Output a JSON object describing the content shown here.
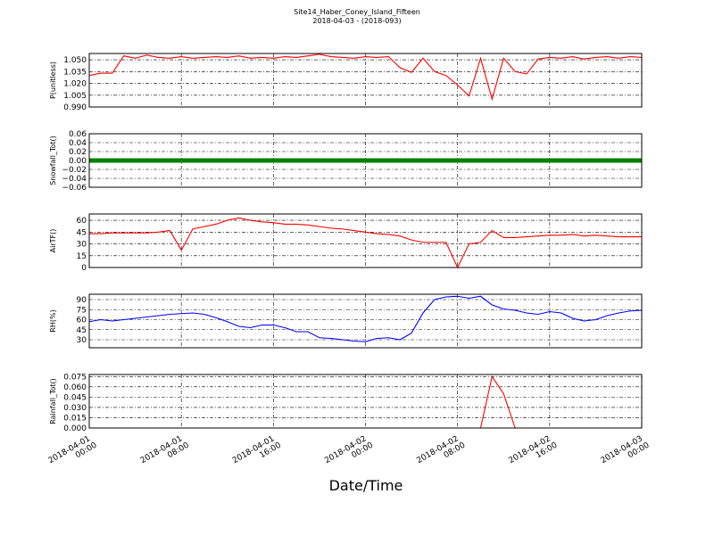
{
  "title": "Site14_Haber_Coney_Island_Fifteen",
  "subtitle": "2018-04-03 - (2018-093)",
  "xlabel": "Date/Time",
  "chart_data": [
    {
      "type": "line",
      "ylabel": "P(unitless)",
      "color": "#ff0000",
      "grid": true,
      "x": [
        "2018-04-01 00:00",
        "2018-04-01 01:00",
        "2018-04-01 02:00",
        "2018-04-01 03:00",
        "2018-04-01 04:00",
        "2018-04-01 05:00",
        "2018-04-01 06:00",
        "2018-04-01 07:00",
        "2018-04-01 08:00",
        "2018-04-01 09:00",
        "2018-04-01 10:00",
        "2018-04-01 11:00",
        "2018-04-01 12:00",
        "2018-04-01 13:00",
        "2018-04-01 14:00",
        "2018-04-01 15:00",
        "2018-04-01 16:00",
        "2018-04-01 17:00",
        "2018-04-01 18:00",
        "2018-04-01 19:00",
        "2018-04-01 20:00",
        "2018-04-01 21:00",
        "2018-04-01 22:00",
        "2018-04-01 23:00",
        "2018-04-02 00:00",
        "2018-04-02 01:00",
        "2018-04-02 02:00",
        "2018-04-02 03:00",
        "2018-04-02 04:00",
        "2018-04-02 05:00",
        "2018-04-02 06:00",
        "2018-04-02 07:00",
        "2018-04-02 08:00",
        "2018-04-02 09:00",
        "2018-04-02 10:00",
        "2018-04-02 11:00",
        "2018-04-02 12:00",
        "2018-04-02 13:00",
        "2018-04-02 14:00",
        "2018-04-02 15:00",
        "2018-04-02 16:00",
        "2018-04-02 17:00",
        "2018-04-02 18:00",
        "2018-04-02 19:00",
        "2018-04-02 20:00",
        "2018-04-02 21:00",
        "2018-04-02 22:00",
        "2018-04-02 23:00",
        "2018-04-03 00:00"
      ],
      "values": [
        1.03,
        1.033,
        1.033,
        1.055,
        1.052,
        1.056,
        1.053,
        1.052,
        1.054,
        1.052,
        1.053,
        1.054,
        1.053,
        1.055,
        1.052,
        1.053,
        1.052,
        1.054,
        1.053,
        1.055,
        1.057,
        1.054,
        1.053,
        1.052,
        1.054,
        1.053,
        1.054,
        1.04,
        1.034,
        1.052,
        1.035,
        1.03,
        1.018,
        1.004,
        1.052,
        1.0,
        1.052,
        1.035,
        1.032,
        1.051,
        1.053,
        1.052,
        1.054,
        1.051,
        1.053,
        1.054,
        1.052,
        1.054,
        1.053
      ],
      "xlim": [
        "2018-04-01 00:00",
        "2018-04-03 00:00"
      ],
      "xticks": [
        "2018-04-01 00:00",
        "2018-04-01 08:00",
        "2018-04-01 16:00",
        "2018-04-02 00:00",
        "2018-04-02 08:00",
        "2018-04-02 16:00",
        "2018-04-03 00:00"
      ],
      "ylim": [
        0.99,
        1.058
      ],
      "yticks": [
        {
          "value": 0.99,
          "label": "0.990"
        },
        {
          "value": 1.005,
          "label": "1.005"
        },
        {
          "value": 1.02,
          "label": "1.020"
        },
        {
          "value": 1.035,
          "label": "1.035"
        },
        {
          "value": 1.05,
          "label": "1.050"
        }
      ]
    },
    {
      "type": "line",
      "ylabel": "Snowfall_Tot()",
      "color": "#008000",
      "grid": true,
      "x": [
        "2018-04-01 00:00",
        "2018-04-01 01:00",
        "2018-04-01 02:00",
        "2018-04-01 03:00",
        "2018-04-01 04:00",
        "2018-04-01 05:00",
        "2018-04-01 06:00",
        "2018-04-01 07:00",
        "2018-04-01 08:00",
        "2018-04-01 09:00",
        "2018-04-01 10:00",
        "2018-04-01 11:00",
        "2018-04-01 12:00",
        "2018-04-01 13:00",
        "2018-04-01 14:00",
        "2018-04-01 15:00",
        "2018-04-01 16:00",
        "2018-04-01 17:00",
        "2018-04-01 18:00",
        "2018-04-01 19:00",
        "2018-04-01 20:00",
        "2018-04-01 21:00",
        "2018-04-01 22:00",
        "2018-04-01 23:00",
        "2018-04-02 00:00",
        "2018-04-02 01:00",
        "2018-04-02 02:00",
        "2018-04-02 03:00",
        "2018-04-02 04:00",
        "2018-04-02 05:00",
        "2018-04-02 06:00",
        "2018-04-02 07:00",
        "2018-04-02 08:00",
        "2018-04-02 09:00",
        "2018-04-02 10:00",
        "2018-04-02 11:00",
        "2018-04-02 12:00",
        "2018-04-02 13:00",
        "2018-04-02 14:00",
        "2018-04-02 15:00",
        "2018-04-02 16:00",
        "2018-04-02 17:00",
        "2018-04-02 18:00",
        "2018-04-02 19:00",
        "2018-04-02 20:00",
        "2018-04-02 21:00",
        "2018-04-02 22:00",
        "2018-04-02 23:00",
        "2018-04-03 00:00"
      ],
      "values": [
        0,
        0,
        0,
        0,
        0,
        0,
        0,
        0,
        0,
        0,
        0,
        0,
        0,
        0,
        0,
        0,
        0,
        0,
        0,
        0,
        0,
        0,
        0,
        0,
        0,
        0,
        0,
        0,
        0,
        0,
        0,
        0,
        0,
        0,
        0,
        0,
        0,
        0,
        0,
        0,
        0,
        0,
        0,
        0,
        0,
        0,
        0,
        0,
        0
      ],
      "xlim": [
        "2018-04-01 00:00",
        "2018-04-03 00:00"
      ],
      "xticks": [
        "2018-04-01 00:00",
        "2018-04-01 08:00",
        "2018-04-01 16:00",
        "2018-04-02 00:00",
        "2018-04-02 08:00",
        "2018-04-02 16:00",
        "2018-04-03 00:00"
      ],
      "ylim": [
        -0.06,
        0.06
      ],
      "yticks": [
        {
          "value": -0.06,
          "label": "−0.06"
        },
        {
          "value": -0.04,
          "label": "−0.04"
        },
        {
          "value": -0.02,
          "label": "−0.02"
        },
        {
          "value": 0,
          "label": "0.00"
        },
        {
          "value": 0.02,
          "label": "0.02"
        },
        {
          "value": 0.04,
          "label": "0.04"
        },
        {
          "value": 0.06,
          "label": "0.06"
        }
      ]
    },
    {
      "type": "line",
      "ylabel": "AirTF()",
      "color": "#ff0000",
      "grid": true,
      "x": [
        "2018-04-01 00:00",
        "2018-04-01 01:00",
        "2018-04-01 02:00",
        "2018-04-01 03:00",
        "2018-04-01 04:00",
        "2018-04-01 05:00",
        "2018-04-01 06:00",
        "2018-04-01 07:00",
        "2018-04-01 08:00",
        "2018-04-01 09:00",
        "2018-04-01 10:00",
        "2018-04-01 11:00",
        "2018-04-01 12:00",
        "2018-04-01 13:00",
        "2018-04-01 14:00",
        "2018-04-01 15:00",
        "2018-04-01 16:00",
        "2018-04-01 17:00",
        "2018-04-01 18:00",
        "2018-04-01 19:00",
        "2018-04-01 20:00",
        "2018-04-01 21:00",
        "2018-04-01 22:00",
        "2018-04-01 23:00",
        "2018-04-02 00:00",
        "2018-04-02 01:00",
        "2018-04-02 02:00",
        "2018-04-02 03:00",
        "2018-04-02 04:00",
        "2018-04-02 05:00",
        "2018-04-02 06:00",
        "2018-04-02 07:00",
        "2018-04-02 08:00",
        "2018-04-02 09:00",
        "2018-04-02 10:00",
        "2018-04-02 11:00",
        "2018-04-02 12:00",
        "2018-04-02 13:00",
        "2018-04-02 14:00",
        "2018-04-02 15:00",
        "2018-04-02 16:00",
        "2018-04-02 17:00",
        "2018-04-02 18:00",
        "2018-04-02 19:00",
        "2018-04-02 20:00",
        "2018-04-02 21:00",
        "2018-04-02 22:00",
        "2018-04-02 23:00",
        "2018-04-03 00:00"
      ],
      "values": [
        43,
        43,
        44,
        44,
        44,
        44,
        45,
        47,
        22,
        49,
        52,
        55,
        60,
        63,
        60,
        58,
        57,
        55,
        55,
        54,
        52,
        50,
        49,
        47,
        45,
        43,
        42,
        40,
        35,
        32,
        32,
        32,
        0,
        30,
        32,
        47,
        38,
        38,
        39,
        40,
        41,
        41,
        42,
        40,
        41,
        40,
        39,
        39,
        39
      ],
      "xlim": [
        "2018-04-01 00:00",
        "2018-04-03 00:00"
      ],
      "xticks": [
        "2018-04-01 00:00",
        "2018-04-01 08:00",
        "2018-04-01 16:00",
        "2018-04-02 00:00",
        "2018-04-02 08:00",
        "2018-04-02 16:00",
        "2018-04-03 00:00"
      ],
      "ylim": [
        0,
        68
      ],
      "yticks": [
        0,
        15,
        30,
        45,
        60
      ]
    },
    {
      "type": "line",
      "ylabel": "RH(%)",
      "color": "#0000ff",
      "grid": true,
      "x": [
        "2018-04-01 00:00",
        "2018-04-01 01:00",
        "2018-04-01 02:00",
        "2018-04-01 03:00",
        "2018-04-01 04:00",
        "2018-04-01 05:00",
        "2018-04-01 06:00",
        "2018-04-01 07:00",
        "2018-04-01 08:00",
        "2018-04-01 09:00",
        "2018-04-01 10:00",
        "2018-04-01 11:00",
        "2018-04-01 12:00",
        "2018-04-01 13:00",
        "2018-04-01 14:00",
        "2018-04-01 15:00",
        "2018-04-01 16:00",
        "2018-04-01 17:00",
        "2018-04-01 18:00",
        "2018-04-01 19:00",
        "2018-04-01 20:00",
        "2018-04-01 21:00",
        "2018-04-01 22:00",
        "2018-04-01 23:00",
        "2018-04-02 00:00",
        "2018-04-02 01:00",
        "2018-04-02 02:00",
        "2018-04-02 03:00",
        "2018-04-02 04:00",
        "2018-04-02 05:00",
        "2018-04-02 06:00",
        "2018-04-02 07:00",
        "2018-04-02 08:00",
        "2018-04-02 09:00",
        "2018-04-02 10:00",
        "2018-04-02 11:00",
        "2018-04-02 12:00",
        "2018-04-02 13:00",
        "2018-04-02 14:00",
        "2018-04-02 15:00",
        "2018-04-02 16:00",
        "2018-04-02 17:00",
        "2018-04-02 18:00",
        "2018-04-02 19:00",
        "2018-04-02 20:00",
        "2018-04-02 21:00",
        "2018-04-02 22:00",
        "2018-04-02 23:00",
        "2018-04-03 00:00"
      ],
      "values": [
        57,
        60,
        58,
        60,
        62,
        64,
        66,
        68,
        69,
        70,
        68,
        63,
        57,
        50,
        48,
        52,
        52,
        48,
        42,
        42,
        33,
        32,
        30,
        28,
        27,
        32,
        33,
        30,
        40,
        70,
        90,
        94,
        95,
        92,
        95,
        82,
        76,
        74,
        70,
        68,
        72,
        70,
        62,
        58,
        60,
        66,
        70,
        73,
        74
      ],
      "xlim": [
        "2018-04-01 00:00",
        "2018-04-03 00:00"
      ],
      "xticks": [
        "2018-04-01 00:00",
        "2018-04-01 08:00",
        "2018-04-01 16:00",
        "2018-04-02 00:00",
        "2018-04-02 08:00",
        "2018-04-02 16:00",
        "2018-04-03 00:00"
      ],
      "ylim": [
        18,
        98
      ],
      "yticks": [
        30,
        45,
        60,
        75,
        90
      ]
    },
    {
      "type": "line",
      "ylabel": "Rainfall_Tot()",
      "color": "#ff0000",
      "grid": true,
      "x": [
        "2018-04-01 00:00",
        "2018-04-01 01:00",
        "2018-04-01 02:00",
        "2018-04-01 03:00",
        "2018-04-01 04:00",
        "2018-04-01 05:00",
        "2018-04-01 06:00",
        "2018-04-01 07:00",
        "2018-04-01 08:00",
        "2018-04-01 09:00",
        "2018-04-01 10:00",
        "2018-04-01 11:00",
        "2018-04-01 12:00",
        "2018-04-01 13:00",
        "2018-04-01 14:00",
        "2018-04-01 15:00",
        "2018-04-01 16:00",
        "2018-04-01 17:00",
        "2018-04-01 18:00",
        "2018-04-01 19:00",
        "2018-04-01 20:00",
        "2018-04-01 21:00",
        "2018-04-01 22:00",
        "2018-04-01 23:00",
        "2018-04-02 00:00",
        "2018-04-02 01:00",
        "2018-04-02 02:00",
        "2018-04-02 03:00",
        "2018-04-02 04:00",
        "2018-04-02 05:00",
        "2018-04-02 06:00",
        "2018-04-02 07:00",
        "2018-04-02 08:00",
        "2018-04-02 09:00",
        "2018-04-02 10:00",
        "2018-04-02 11:00",
        "2018-04-02 12:00",
        "2018-04-02 13:00",
        "2018-04-02 14:00",
        "2018-04-02 15:00",
        "2018-04-02 16:00",
        "2018-04-02 17:00",
        "2018-04-02 18:00",
        "2018-04-02 19:00",
        "2018-04-02 20:00",
        "2018-04-02 21:00",
        "2018-04-02 22:00",
        "2018-04-02 23:00",
        "2018-04-03 00:00"
      ],
      "values": [
        0,
        0,
        0,
        0,
        0,
        0,
        0,
        0,
        0,
        0,
        0,
        0,
        0,
        0,
        0,
        0,
        0,
        0,
        0,
        0,
        0,
        0,
        0,
        0,
        0,
        0,
        0,
        0,
        0,
        0,
        0,
        0,
        0,
        0,
        0,
        0.075,
        0.05,
        0,
        0,
        0,
        0,
        0,
        0,
        0,
        0,
        0,
        0,
        0,
        0
      ],
      "xlim": [
        "2018-04-01 00:00",
        "2018-04-03 00:00"
      ],
      "xticks": [
        "2018-04-01 00:00",
        "2018-04-01 08:00",
        "2018-04-01 16:00",
        "2018-04-02 00:00",
        "2018-04-02 08:00",
        "2018-04-02 16:00",
        "2018-04-03 00:00"
      ],
      "ylim": [
        0,
        0.078
      ],
      "yticks": [
        {
          "value": 0,
          "label": "0.000"
        },
        {
          "value": 0.015,
          "label": "0.015"
        },
        {
          "value": 0.03,
          "label": "0.030"
        },
        {
          "value": 0.045,
          "label": "0.045"
        },
        {
          "value": 0.06,
          "label": "0.060"
        },
        {
          "value": 0.075,
          "label": "0.075"
        }
      ]
    }
  ]
}
